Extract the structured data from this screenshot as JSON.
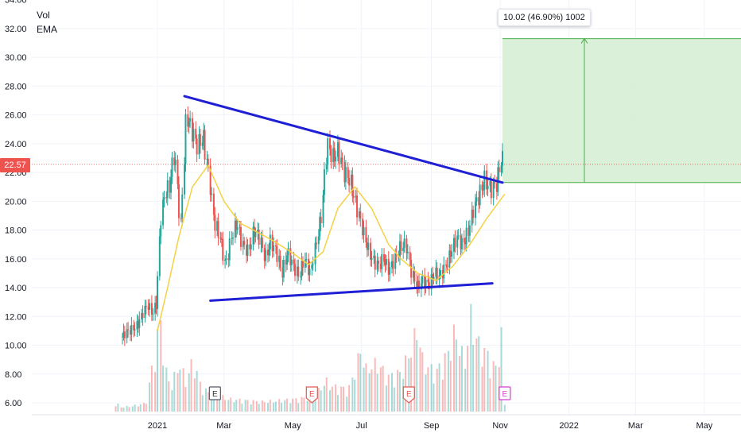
{
  "legend": {
    "vol_label": "Vol",
    "ema_label": "EMA"
  },
  "current_price": "22.57",
  "measurement_label": "10.02 (46.90%) 1002",
  "colors": {
    "up": "#26a69a",
    "down": "#ef5350",
    "trendline": "#1f1fd6",
    "ema": "#f5d142",
    "measure_fill": "#d6eed5",
    "measure_stroke": "#4caf50",
    "price_line": "#ef5350",
    "grid": "#f0f3fa"
  },
  "chart_data": {
    "type": "candlestick",
    "y_ticks": [
      "34.00",
      "32.00",
      "30.00",
      "28.00",
      "26.00",
      "24.00",
      "22.00",
      "20.00",
      "18.00",
      "16.00",
      "14.00",
      "12.00",
      "10.00",
      "8.00",
      "6.00"
    ],
    "x_ticks": [
      "2021",
      "Mar",
      "May",
      "Jul",
      "Sep",
      "Nov",
      "2022",
      "Mar",
      "May"
    ],
    "ylim": [
      5.5,
      34
    ],
    "grid": true,
    "close_points": [
      [
        "2020-12-01",
        10.6
      ],
      [
        "2020-12-05",
        10.9
      ],
      [
        "2020-12-10",
        11.1
      ],
      [
        "2020-12-15",
        11.4
      ],
      [
        "2020-12-20",
        12.3
      ],
      [
        "2020-12-24",
        12.8
      ],
      [
        "2020-12-28",
        12.2
      ],
      [
        "2021-01-01",
        13.0
      ],
      [
        "2021-01-04",
        18.5
      ],
      [
        "2021-01-08",
        20.5
      ],
      [
        "2021-01-12",
        21.0
      ],
      [
        "2021-01-17",
        23.5
      ],
      [
        "2021-01-22",
        18.0
      ],
      [
        "2021-01-27",
        26.0
      ],
      [
        "2021-02-01",
        25.0
      ],
      [
        "2021-02-06",
        23.8
      ],
      [
        "2021-02-11",
        24.5
      ],
      [
        "2021-02-16",
        22.0
      ],
      [
        "2021-02-21",
        18.5
      ],
      [
        "2021-02-26",
        17.5
      ],
      [
        "2021-03-03",
        15.5
      ],
      [
        "2021-03-08",
        17.5
      ],
      [
        "2021-03-13",
        18.5
      ],
      [
        "2021-03-18",
        17.0
      ],
      [
        "2021-03-23",
        16.5
      ],
      [
        "2021-03-28",
        18.0
      ],
      [
        "2021-04-02",
        17.5
      ],
      [
        "2021-04-07",
        16.0
      ],
      [
        "2021-04-12",
        17.2
      ],
      [
        "2021-04-17",
        16.5
      ],
      [
        "2021-04-22",
        15.0
      ],
      [
        "2021-04-27",
        16.5
      ],
      [
        "2021-05-02",
        15.5
      ],
      [
        "2021-05-07",
        14.8
      ],
      [
        "2021-05-12",
        16.0
      ],
      [
        "2021-05-17",
        15.0
      ],
      [
        "2021-05-22",
        17.0
      ],
      [
        "2021-05-27",
        19.0
      ],
      [
        "2021-06-01",
        24.0
      ],
      [
        "2021-06-06",
        23.0
      ],
      [
        "2021-06-11",
        23.5
      ],
      [
        "2021-06-16",
        22.0
      ],
      [
        "2021-06-21",
        21.5
      ],
      [
        "2021-06-26",
        20.0
      ],
      [
        "2021-07-01",
        18.5
      ],
      [
        "2021-07-06",
        17.0
      ],
      [
        "2021-07-11",
        16.0
      ],
      [
        "2021-07-16",
        15.5
      ],
      [
        "2021-07-21",
        16.0
      ],
      [
        "2021-07-26",
        15.2
      ],
      [
        "2021-07-31",
        16.0
      ],
      [
        "2021-08-05",
        16.8
      ],
      [
        "2021-08-10",
        17.0
      ],
      [
        "2021-08-15",
        15.0
      ],
      [
        "2021-08-20",
        14.0
      ],
      [
        "2021-08-25",
        14.5
      ],
      [
        "2021-08-30",
        14.2
      ],
      [
        "2021-09-04",
        15.0
      ],
      [
        "2021-09-09",
        14.8
      ],
      [
        "2021-09-14",
        15.5
      ],
      [
        "2021-09-19",
        16.5
      ],
      [
        "2021-09-24",
        17.5
      ],
      [
        "2021-09-29",
        17.0
      ],
      [
        "2021-10-04",
        17.8
      ],
      [
        "2021-10-09",
        19.5
      ],
      [
        "2021-10-14",
        20.5
      ],
      [
        "2021-10-19",
        21.5
      ],
      [
        "2021-10-24",
        20.8
      ],
      [
        "2021-10-29",
        21.2
      ],
      [
        "2021-11-03",
        23.0
      ],
      [
        "2021-11-05",
        22.57
      ]
    ],
    "ema_points": [
      [
        "2021-01-01",
        11.0
      ],
      [
        "2021-01-10",
        14.0
      ],
      [
        "2021-01-20",
        17.5
      ],
      [
        "2021-02-01",
        21.0
      ],
      [
        "2021-02-15",
        22.5
      ],
      [
        "2021-03-01",
        20.0
      ],
      [
        "2021-03-15",
        18.5
      ],
      [
        "2021-04-01",
        17.8
      ],
      [
        "2021-04-15",
        17.2
      ],
      [
        "2021-05-01",
        16.4
      ],
      [
        "2021-05-15",
        15.6
      ],
      [
        "2021-05-28",
        16.5
      ],
      [
        "2021-06-10",
        19.5
      ],
      [
        "2021-06-25",
        21.0
      ],
      [
        "2021-07-10",
        19.5
      ],
      [
        "2021-07-25",
        17.0
      ],
      [
        "2021-08-05",
        16.0
      ],
      [
        "2021-08-20",
        15.0
      ],
      [
        "2021-09-05",
        14.5
      ],
      [
        "2021-09-20",
        15.5
      ],
      [
        "2021-10-05",
        17.0
      ],
      [
        "2021-10-20",
        18.8
      ],
      [
        "2021-11-05",
        20.5
      ]
    ],
    "upper_trendline": [
      [
        "2021-01-25",
        27.3
      ],
      [
        "2021-11-03",
        21.3
      ]
    ],
    "lower_trendline": [
      [
        "2021-02-17",
        13.1
      ],
      [
        "2021-10-25",
        14.3
      ]
    ],
    "price_line": 22.57,
    "measurement": {
      "start": "2021-11-03",
      "end": "2022-06-30",
      "low": 21.3,
      "high": 31.3
    },
    "volume_bars": [
      [
        "2020-11-28",
        0.3
      ],
      [
        "2020-12-10",
        0.4
      ],
      [
        "2020-12-22",
        0.6
      ],
      [
        "2021-01-04",
        6.5
      ],
      [
        "2021-01-08",
        3.0
      ],
      [
        "2021-01-14",
        1.8
      ],
      [
        "2021-01-20",
        3.5
      ],
      [
        "2021-01-27",
        2.2
      ],
      [
        "2021-02-02",
        3.8
      ],
      [
        "2021-02-08",
        2.0
      ],
      [
        "2021-02-14",
        1.4
      ],
      [
        "2021-02-22",
        1.2
      ],
      [
        "2021-03-05",
        0.9
      ],
      [
        "2021-03-20",
        0.8
      ],
      [
        "2021-04-05",
        0.7
      ],
      [
        "2021-04-20",
        0.8
      ],
      [
        "2021-05-05",
        0.9
      ],
      [
        "2021-05-20",
        1.1
      ],
      [
        "2021-05-31",
        2.2
      ],
      [
        "2021-06-05",
        1.8
      ],
      [
        "2021-06-20",
        1.6
      ],
      [
        "2021-07-01",
        4.5
      ],
      [
        "2021-07-05",
        3.0
      ],
      [
        "2021-07-15",
        3.5
      ],
      [
        "2021-07-25",
        2.5
      ],
      [
        "2021-08-05",
        2.8
      ],
      [
        "2021-08-12",
        4.0
      ],
      [
        "2021-08-20",
        6.0
      ],
      [
        "2021-08-25",
        3.5
      ],
      [
        "2021-09-05",
        2.8
      ],
      [
        "2021-09-15",
        4.0
      ],
      [
        "2021-09-22",
        5.8
      ],
      [
        "2021-10-01",
        3.5
      ],
      [
        "2021-10-06",
        6.8
      ],
      [
        "2021-10-12",
        5.0
      ],
      [
        "2021-10-20",
        4.2
      ],
      [
        "2021-10-28",
        3.0
      ],
      [
        "2021-11-03",
        5.6
      ]
    ],
    "event_markers": [
      {
        "date": "2021-02-21",
        "label": "E",
        "style": "past"
      },
      {
        "date": "2021-05-18",
        "label": "E",
        "style": "red"
      },
      {
        "date": "2021-08-12",
        "label": "E",
        "style": "red"
      },
      {
        "date": "2021-11-05",
        "label": "E",
        "style": "upcoming"
      }
    ]
  }
}
